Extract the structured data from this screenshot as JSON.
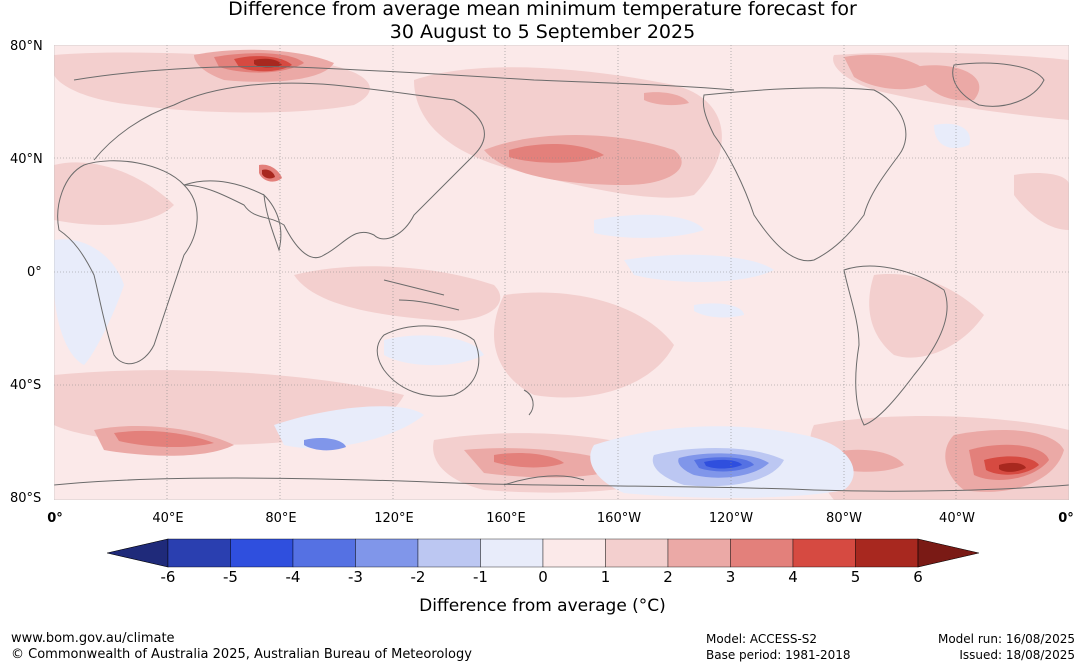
{
  "title": {
    "line1": "Difference from average mean minimum temperature forecast for",
    "line2": "30 August to 5 September 2025"
  },
  "lat_labels": [
    "80°N",
    "40°N",
    "0°",
    "40°S",
    "80°S"
  ],
  "lon_labels": [
    "0°",
    "40°E",
    "80°E",
    "120°E",
    "160°E",
    "160°W",
    "120°W",
    "80°W",
    "40°W",
    "0°"
  ],
  "colorbar": {
    "label": "Difference from average (°C)",
    "ticks": [
      "-6",
      "-5",
      "-4",
      "-3",
      "-2",
      "-1",
      "0",
      "1",
      "2",
      "3",
      "4",
      "5",
      "6"
    ],
    "colors": [
      "#1f2a7a",
      "#2a3fb0",
      "#2f4fde",
      "#5571e3",
      "#8096ea",
      "#bcc7f2",
      "#e8ecfa",
      "#fbe9e9",
      "#f3cfce",
      "#eba9a6",
      "#e3807b",
      "#d64a41",
      "#a8281f",
      "#7a1a15"
    ]
  },
  "footer": {
    "url": "www.bom.gov.au/climate",
    "copyright": "© Commonwealth of Australia 2025, Australian Bureau of Meteorology",
    "model": "Model: ACCESS-S2",
    "base_period": "Base period: 1981-2018",
    "model_run": "Model run: 16/08/2025",
    "issued": "Issued: 18/08/2025"
  },
  "map_colors": {
    "background": "#fbe9e9",
    "coast": "#6b6b6b",
    "grid": "#888888"
  }
}
